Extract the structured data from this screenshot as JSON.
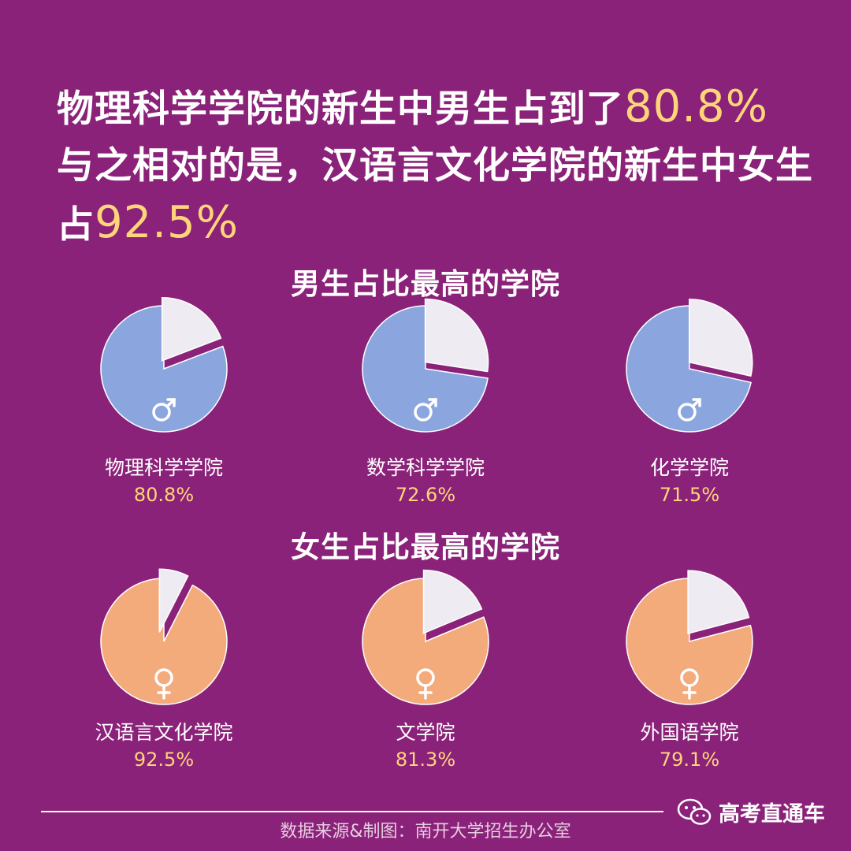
{
  "headline": {
    "line1_text": "物理科学学院的新生中男生占到了",
    "line1_highlight": "80.8%",
    "line2_text": "与之相对的是，汉语言文化学院的新生中女生占",
    "line2_highlight": "92.5%"
  },
  "colors": {
    "background": "#8b2279",
    "male_slice": "#8ba6de",
    "female_slice": "#f3ab7c",
    "rest_slice": "#eeecf2",
    "highlight": "#ffd57a"
  },
  "chart_data": [
    {
      "type": "pie",
      "title": "男生占比最高的学院",
      "gender_icon": "male-symbol-icon",
      "slices": [
        {
          "label": "物理科学学院",
          "value": 80.8,
          "value_label": "80.8%"
        },
        {
          "label": "数学科学学院",
          "value": 72.6,
          "value_label": "72.6%"
        },
        {
          "label": "化学学院",
          "value": 71.5,
          "value_label": "71.5%"
        }
      ]
    },
    {
      "type": "pie",
      "title": "女生占比最高的学院",
      "gender_icon": "female-symbol-icon",
      "slices": [
        {
          "label": "汉语言文化学院",
          "value": 92.5,
          "value_label": "92.5%"
        },
        {
          "label": "文学院",
          "value": 81.3,
          "value_label": "81.3%"
        },
        {
          "label": "外国语学院",
          "value": 79.1,
          "value_label": "79.1%"
        }
      ]
    }
  ],
  "footer": {
    "source": "数据来源&制图：南开大学招生办公室",
    "watermark": "高考直通车",
    "watermark_icon": "wechat-icon"
  }
}
